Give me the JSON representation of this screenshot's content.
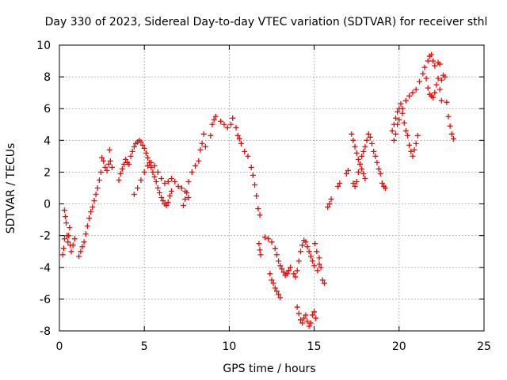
{
  "chart_data": {
    "type": "scatter",
    "title": "Day 330 of 2023, Sidereal Day-to-day VTEC variation (SDTVAR) for receiver sthl",
    "xlabel": "GPS time / hours",
    "ylabel": "SDTVAR / TECUs",
    "xlim": [
      0,
      25
    ],
    "ylim": [
      -8,
      10
    ],
    "x_ticks": [
      0,
      5,
      10,
      15,
      20,
      25
    ],
    "y_ticks": [
      -8,
      -6,
      -4,
      -2,
      0,
      2,
      4,
      6,
      8,
      10
    ],
    "x_tick_labels": [
      "0",
      "5",
      "10",
      "15",
      "20",
      "25"
    ],
    "y_tick_labels": [
      "-8",
      "-6",
      "-4",
      "-2",
      "0",
      "2",
      "4",
      "6",
      "8",
      "10"
    ],
    "grid": true,
    "marker": "plus",
    "marker_color": "#ff0000",
    "series": [
      {
        "name": "SDTVAR",
        "points": [
          [
            0.2,
            -3.2
          ],
          [
            0.25,
            -2.8
          ],
          [
            0.3,
            -2.2
          ],
          [
            0.3,
            -0.4
          ],
          [
            0.35,
            -0.8
          ],
          [
            0.4,
            -1.2
          ],
          [
            0.45,
            -2.0
          ],
          [
            0.5,
            -2.4
          ],
          [
            0.55,
            -2.0
          ],
          [
            0.6,
            -1.5
          ],
          [
            0.65,
            -2.6
          ],
          [
            0.7,
            -3.0
          ],
          [
            0.8,
            -2.6
          ],
          [
            0.9,
            -2.2
          ],
          [
            1.15,
            -3.3
          ],
          [
            1.25,
            -3.0
          ],
          [
            1.35,
            -2.7
          ],
          [
            1.45,
            -2.4
          ],
          [
            1.55,
            -1.9
          ],
          [
            1.65,
            -1.4
          ],
          [
            1.75,
            -0.9
          ],
          [
            1.85,
            -0.5
          ],
          [
            1.95,
            -0.2
          ],
          [
            2.05,
            0.2
          ],
          [
            2.15,
            0.6
          ],
          [
            2.25,
            1.0
          ],
          [
            2.35,
            1.5
          ],
          [
            2.45,
            2.0
          ],
          [
            2.5,
            2.9
          ],
          [
            2.6,
            2.7
          ],
          [
            2.7,
            2.3
          ],
          [
            2.8,
            2.1
          ],
          [
            2.9,
            2.5
          ],
          [
            2.95,
            3.4
          ],
          [
            3.0,
            2.7
          ],
          [
            3.1,
            2.3
          ],
          [
            3.5,
            1.5
          ],
          [
            3.6,
            1.9
          ],
          [
            3.7,
            2.2
          ],
          [
            3.8,
            2.5
          ],
          [
            3.9,
            2.8
          ],
          [
            4.0,
            2.6
          ],
          [
            4.1,
            2.5
          ],
          [
            4.2,
            3.0
          ],
          [
            4.3,
            3.3
          ],
          [
            4.4,
            3.6
          ],
          [
            4.5,
            3.8
          ],
          [
            4.6,
            3.9
          ],
          [
            4.7,
            4.0
          ],
          [
            4.8,
            3.9
          ],
          [
            4.9,
            3.7
          ],
          [
            5.0,
            3.5
          ],
          [
            5.1,
            3.2
          ],
          [
            5.2,
            2.9
          ],
          [
            5.3,
            2.6
          ],
          [
            5.4,
            2.3
          ],
          [
            5.5,
            2.0
          ],
          [
            5.6,
            1.7
          ],
          [
            5.7,
            1.4
          ],
          [
            5.8,
            1.0
          ],
          [
            5.9,
            0.7
          ],
          [
            6.0,
            0.4
          ],
          [
            6.1,
            0.2
          ],
          [
            6.2,
            0.0
          ],
          [
            6.3,
            -0.1
          ],
          [
            6.4,
            0.1
          ],
          [
            6.5,
            0.5
          ],
          [
            6.6,
            0.8
          ],
          [
            4.4,
            0.6
          ],
          [
            4.6,
            1.0
          ],
          [
            4.8,
            1.5
          ],
          [
            5.0,
            2.0
          ],
          [
            5.2,
            2.4
          ],
          [
            5.4,
            2.6
          ],
          [
            5.6,
            2.4
          ],
          [
            5.8,
            2.0
          ],
          [
            6.0,
            1.6
          ],
          [
            6.2,
            1.3
          ],
          [
            6.4,
            1.4
          ],
          [
            6.6,
            1.6
          ],
          [
            6.8,
            1.4
          ],
          [
            7.0,
            1.1
          ],
          [
            7.2,
            1.0
          ],
          [
            7.4,
            0.8
          ],
          [
            7.6,
            1.4
          ],
          [
            7.8,
            2.0
          ],
          [
            8.0,
            2.4
          ],
          [
            8.2,
            2.7
          ],
          [
            8.3,
            3.4
          ],
          [
            8.4,
            3.8
          ],
          [
            8.5,
            4.4
          ],
          [
            8.6,
            3.6
          ],
          [
            7.3,
            -0.1
          ],
          [
            7.4,
            0.3
          ],
          [
            7.5,
            0.7
          ],
          [
            7.6,
            0.4
          ],
          [
            8.9,
            4.3
          ],
          [
            9.0,
            5.0
          ],
          [
            9.1,
            5.3
          ],
          [
            9.2,
            5.5
          ],
          [
            9.5,
            5.2
          ],
          [
            9.7,
            5.0
          ],
          [
            9.9,
            4.8
          ],
          [
            10.1,
            5.0
          ],
          [
            10.2,
            5.4
          ],
          [
            10.4,
            4.8
          ],
          [
            10.5,
            4.3
          ],
          [
            10.6,
            4.1
          ],
          [
            10.7,
            3.8
          ],
          [
            10.9,
            3.3
          ],
          [
            11.1,
            3.0
          ],
          [
            11.3,
            2.3
          ],
          [
            11.4,
            1.8
          ],
          [
            11.5,
            1.2
          ],
          [
            11.6,
            0.5
          ],
          [
            11.7,
            -0.3
          ],
          [
            11.8,
            -0.7
          ],
          [
            11.75,
            -2.5
          ],
          [
            11.8,
            -2.9
          ],
          [
            11.85,
            -3.2
          ],
          [
            12.1,
            -2.1
          ],
          [
            12.3,
            -2.2
          ],
          [
            12.5,
            -2.4
          ],
          [
            12.7,
            -2.8
          ],
          [
            12.8,
            -3.2
          ],
          [
            12.9,
            -3.6
          ],
          [
            13.0,
            -3.9
          ],
          [
            13.1,
            -4.1
          ],
          [
            13.2,
            -4.3
          ],
          [
            13.3,
            -4.5
          ],
          [
            13.4,
            -4.4
          ],
          [
            13.5,
            -4.2
          ],
          [
            13.6,
            -4.0
          ],
          [
            13.8,
            -4.4
          ],
          [
            13.9,
            -4.6
          ],
          [
            14.0,
            -4.2
          ],
          [
            14.1,
            -3.6
          ],
          [
            14.2,
            -3.0
          ],
          [
            14.3,
            -2.6
          ],
          [
            14.4,
            -2.3
          ],
          [
            14.5,
            -2.4
          ],
          [
            14.6,
            -2.7
          ],
          [
            14.7,
            -3.0
          ],
          [
            14.8,
            -3.3
          ],
          [
            14.9,
            -3.6
          ],
          [
            15.0,
            -3.9
          ],
          [
            15.2,
            -4.2
          ],
          [
            15.3,
            -3.8
          ],
          [
            12.4,
            -4.4
          ],
          [
            12.5,
            -4.8
          ],
          [
            12.6,
            -5.0
          ],
          [
            12.7,
            -5.3
          ],
          [
            12.8,
            -5.5
          ],
          [
            12.9,
            -5.7
          ],
          [
            13.0,
            -5.9
          ],
          [
            14.0,
            -6.5
          ],
          [
            14.1,
            -6.9
          ],
          [
            14.2,
            -7.3
          ],
          [
            14.3,
            -7.5
          ],
          [
            14.4,
            -7.2
          ],
          [
            14.5,
            -7.0
          ],
          [
            14.6,
            -7.4
          ],
          [
            14.7,
            -7.7
          ],
          [
            14.8,
            -7.5
          ],
          [
            14.9,
            -7.0
          ],
          [
            15.0,
            -6.8
          ],
          [
            15.1,
            -7.2
          ],
          [
            15.05,
            -2.5
          ],
          [
            15.15,
            -3.0
          ],
          [
            15.3,
            -3.4
          ],
          [
            15.4,
            -4.0
          ],
          [
            15.5,
            -4.8
          ],
          [
            15.6,
            -5.0
          ],
          [
            15.8,
            -0.2
          ],
          [
            15.9,
            0.0
          ],
          [
            16.0,
            0.3
          ],
          [
            16.4,
            1.1
          ],
          [
            16.5,
            1.3
          ],
          [
            16.9,
            1.9
          ],
          [
            17.0,
            2.1
          ],
          [
            17.2,
            4.4
          ],
          [
            17.3,
            4.0
          ],
          [
            17.4,
            3.6
          ],
          [
            17.5,
            3.2
          ],
          [
            17.6,
            2.8
          ],
          [
            17.7,
            2.5
          ],
          [
            17.8,
            2.2
          ],
          [
            17.9,
            1.9
          ],
          [
            18.0,
            1.6
          ],
          [
            17.3,
            1.3
          ],
          [
            17.4,
            1.1
          ],
          [
            17.5,
            1.4
          ],
          [
            17.6,
            2.0
          ],
          [
            17.7,
            2.5
          ],
          [
            17.8,
            3.0
          ],
          [
            17.9,
            3.3
          ],
          [
            18.0,
            3.6
          ],
          [
            18.1,
            4.0
          ],
          [
            18.2,
            4.4
          ],
          [
            18.3,
            4.2
          ],
          [
            18.4,
            3.8
          ],
          [
            18.5,
            3.3
          ],
          [
            18.6,
            3.0
          ],
          [
            18.7,
            2.6
          ],
          [
            18.8,
            2.2
          ],
          [
            18.9,
            1.9
          ],
          [
            19.0,
            1.3
          ],
          [
            19.1,
            1.1
          ],
          [
            19.2,
            1.0
          ],
          [
            19.6,
            4.6
          ],
          [
            19.7,
            5.0
          ],
          [
            19.8,
            5.4
          ],
          [
            19.9,
            5.8
          ],
          [
            20.0,
            6.0
          ],
          [
            20.1,
            6.3
          ],
          [
            20.2,
            5.7
          ],
          [
            20.3,
            5.1
          ],
          [
            20.4,
            4.6
          ],
          [
            20.5,
            4.3
          ],
          [
            20.6,
            3.7
          ],
          [
            20.7,
            3.3
          ],
          [
            20.8,
            3.0
          ],
          [
            20.9,
            3.4
          ],
          [
            21.0,
            3.8
          ],
          [
            21.1,
            4.3
          ],
          [
            19.7,
            4.0
          ],
          [
            19.8,
            4.4
          ],
          [
            19.9,
            5.0
          ],
          [
            20.0,
            5.3
          ],
          [
            20.2,
            6.0
          ],
          [
            20.4,
            6.5
          ],
          [
            20.6,
            6.8
          ],
          [
            20.8,
            7.0
          ],
          [
            21.0,
            7.2
          ],
          [
            21.2,
            7.7
          ],
          [
            21.4,
            8.2
          ],
          [
            21.5,
            8.6
          ],
          [
            21.6,
            7.9
          ],
          [
            21.7,
            7.3
          ],
          [
            21.8,
            6.9
          ],
          [
            21.9,
            6.8
          ],
          [
            22.0,
            6.7
          ],
          [
            22.1,
            7.0
          ],
          [
            22.2,
            7.5
          ],
          [
            22.3,
            7.9
          ],
          [
            22.4,
            7.2
          ],
          [
            22.5,
            6.5
          ],
          [
            21.7,
            9.0
          ],
          [
            21.8,
            9.3
          ],
          [
            21.9,
            9.4
          ],
          [
            22.0,
            9.0
          ],
          [
            22.1,
            8.7
          ],
          [
            22.3,
            8.9
          ],
          [
            22.4,
            8.8
          ],
          [
            22.5,
            7.8
          ],
          [
            22.6,
            8.1
          ],
          [
            22.7,
            8.0
          ],
          [
            22.8,
            6.4
          ],
          [
            22.9,
            5.5
          ],
          [
            23.0,
            4.9
          ],
          [
            23.1,
            4.4
          ],
          [
            23.2,
            4.1
          ]
        ]
      }
    ]
  }
}
